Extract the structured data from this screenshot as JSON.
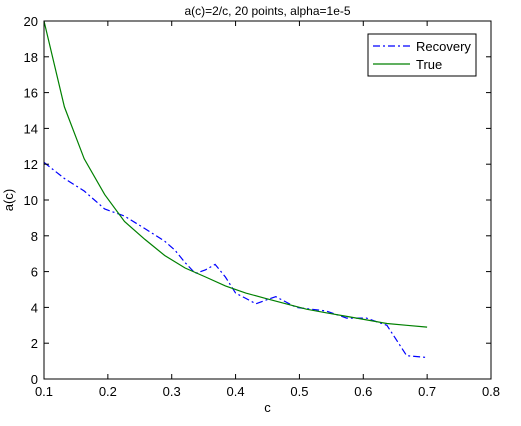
{
  "chart_data": {
    "type": "line",
    "title": "a(c)=2/c, 20 points, alpha=1e-5",
    "xlabel": "c",
    "ylabel": "a(c)",
    "xlim": [
      0.1,
      0.8
    ],
    "ylim": [
      0,
      20
    ],
    "xticks": [
      "0.1",
      "0.2",
      "0.3",
      "0.4",
      "0.5",
      "0.6",
      "0.7",
      "0.8"
    ],
    "yticks": [
      "0",
      "2",
      "4",
      "6",
      "8",
      "10",
      "12",
      "14",
      "16",
      "18",
      "20"
    ],
    "grid": false,
    "legend_position": "top-right",
    "series": [
      {
        "name": "Recovery",
        "color": "#0000ff",
        "style": "dash-dot",
        "x": [
          0.1,
          0.132,
          0.163,
          0.195,
          0.226,
          0.258,
          0.289,
          0.305,
          0.321,
          0.337,
          0.353,
          0.368,
          0.384,
          0.4,
          0.416,
          0.432,
          0.447,
          0.463,
          0.479,
          0.495,
          0.542,
          0.574,
          0.605,
          0.637,
          0.668,
          0.7
        ],
        "values": [
          12.1,
          11.2,
          10.5,
          9.5,
          9.1,
          8.4,
          7.7,
          7.2,
          6.5,
          5.9,
          6.1,
          6.4,
          5.7,
          4.8,
          4.5,
          4.2,
          4.4,
          4.6,
          4.3,
          4.0,
          3.8,
          3.4,
          3.4,
          3.0,
          1.3,
          1.2
        ]
      },
      {
        "name": "True",
        "color": "#008000",
        "style": "solid",
        "x": [
          0.1,
          0.132,
          0.163,
          0.195,
          0.226,
          0.258,
          0.289,
          0.321,
          0.353,
          0.384,
          0.416,
          0.447,
          0.479,
          0.511,
          0.542,
          0.574,
          0.605,
          0.637,
          0.668,
          0.7
        ],
        "values": [
          20.0,
          15.2,
          12.3,
          10.3,
          8.8,
          7.8,
          6.9,
          6.2,
          5.7,
          5.2,
          4.8,
          4.5,
          4.2,
          3.9,
          3.7,
          3.5,
          3.3,
          3.1,
          3.0,
          2.9
        ]
      }
    ]
  }
}
